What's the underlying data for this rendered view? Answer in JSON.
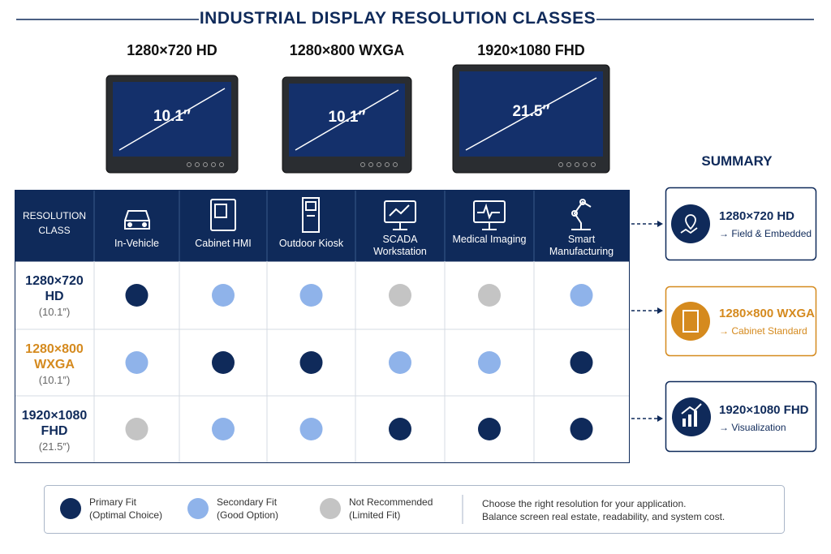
{
  "title": "INDUSTRIAL DISPLAY RESOLUTION CLASSES",
  "displays": [
    {
      "label": "1280×720 HD",
      "size": "10.1″"
    },
    {
      "label": "1280×800 WXGA",
      "size": "10.1″"
    },
    {
      "label": "1920×1080 FHD",
      "size": "21.5″"
    }
  ],
  "table": {
    "corner": "RESOLUTION CLASS",
    "columns": [
      "In-Vehicle",
      "Cabinet HMI",
      "Outdoor Kiosk",
      "SCADA Workstation",
      "Medical Imaging",
      "Smart Manufacturing"
    ],
    "rows": [
      {
        "resolution": "1280×720",
        "class": "HD",
        "size": "(10.1″)",
        "fits": [
          "Primary Fit",
          "Secondary Fit",
          "Secondary Fit",
          "Not Recommended",
          "Not Recommended",
          "Secondary Fit"
        ]
      },
      {
        "resolution": "1280×800",
        "class": "WXGA",
        "size": "(10.1″)",
        "fits": [
          "Secondary Fit",
          "Primary Fit",
          "Primary Fit",
          "Secondary Fit",
          "Secondary Fit",
          "Primary Fit"
        ]
      },
      {
        "resolution": "1920×1080",
        "class": "FHD",
        "size": "(21.5″)",
        "fits": [
          "Not Recommended",
          "Secondary Fit",
          "Secondary Fit",
          "Primary Fit",
          "Primary Fit",
          "Primary Fit"
        ]
      }
    ]
  },
  "summary": {
    "title": "SUMMARY",
    "items": [
      {
        "title": "1280×720 HD",
        "detail": "→ Field & Embedded"
      },
      {
        "title": "1280×800 WXGA",
        "detail": "→ Cabinet Standard"
      },
      {
        "title": "1920×1080 FHD",
        "detail": "→ Visualization"
      }
    ]
  },
  "legend": {
    "items": [
      {
        "name": "Primary Fit",
        "detail": "(Optimal Choice)",
        "color": "#0f2a5a"
      },
      {
        "name": "Secondary Fit",
        "detail": "(Good Option)",
        "color": "#8fb3ea"
      },
      {
        "name": "Not Recommended",
        "detail": "(Limited Fit)",
        "color": "#c4c4c4"
      }
    ],
    "note": [
      "Choose the right resolution for your application.",
      "Balance screen real estate, readability, and system cost."
    ]
  }
}
